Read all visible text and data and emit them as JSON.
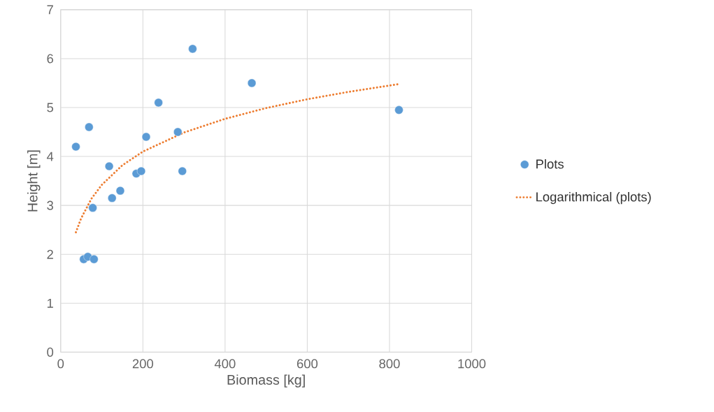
{
  "chart_data": {
    "type": "scatter",
    "xlabel": "Biomass [kg]",
    "ylabel": "Height [m]",
    "xlim": [
      0,
      1000
    ],
    "xticks": [
      0,
      200,
      400,
      600,
      800,
      1000
    ],
    "ylim": [
      0,
      7
    ],
    "yticks": [
      0,
      1,
      2,
      3,
      4,
      5,
      6,
      7
    ],
    "grid": true,
    "legend": "right",
    "series": [
      {
        "name": "Plots",
        "color": "#5b9bd5",
        "marker": "circle",
        "x": [
          37,
          69,
          56,
          66,
          81,
          78,
          118,
          125,
          145,
          184,
          196,
          208,
          238,
          285,
          296,
          321,
          465,
          823
        ],
        "values": [
          4.2,
          4.6,
          1.9,
          1.95,
          1.9,
          2.95,
          3.8,
          3.15,
          3.3,
          3.65,
          3.7,
          4.4,
          5.1,
          4.5,
          3.7,
          6.2,
          5.5,
          4.95
        ]
      },
      {
        "name": "Logarithmical (plots)",
        "type": "line",
        "color": "#ed7d31",
        "marker": "none",
        "line_style": "dotted",
        "x": [
          37,
          50,
          75,
          100,
          150,
          200,
          300,
          400,
          500,
          600,
          700,
          823
        ],
        "values": [
          2.45,
          2.74,
          3.14,
          3.42,
          3.82,
          4.1,
          4.49,
          4.77,
          4.99,
          5.17,
          5.32,
          5.48
        ]
      }
    ]
  }
}
